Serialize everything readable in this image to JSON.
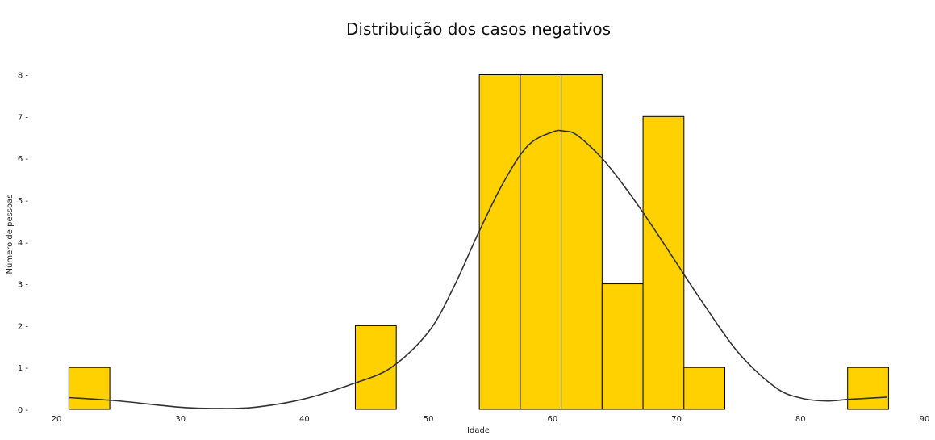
{
  "chart_data": {
    "type": "bar",
    "title": "Distribuição dos casos negativos",
    "xlabel": "Idade",
    "ylabel": "Número de pessoas",
    "xlim": [
      20,
      90
    ],
    "ylim": [
      0,
      8
    ],
    "xticks": [
      20,
      30,
      40,
      50,
      60,
      70,
      80,
      90
    ],
    "yticks": [
      0,
      1,
      2,
      3,
      4,
      5,
      6,
      7,
      8
    ],
    "grid": false,
    "bar_color": "#ffd100",
    "bar_edge_color": "#000000",
    "kde_color": "#333333",
    "bins": [
      {
        "start": 21.0,
        "end": 24.3,
        "count": 1
      },
      {
        "start": 44.1,
        "end": 47.4,
        "count": 2
      },
      {
        "start": 54.1,
        "end": 57.4,
        "count": 8
      },
      {
        "start": 57.4,
        "end": 60.7,
        "count": 8
      },
      {
        "start": 60.7,
        "end": 64.0,
        "count": 8
      },
      {
        "start": 64.0,
        "end": 67.3,
        "count": 3
      },
      {
        "start": 67.3,
        "end": 70.6,
        "count": 7
      },
      {
        "start": 70.6,
        "end": 73.9,
        "count": 1
      },
      {
        "start": 83.8,
        "end": 87.1,
        "count": 1
      }
    ],
    "kde": {
      "x": [
        21,
        25,
        30,
        33,
        36,
        40,
        44,
        47,
        50,
        52,
        54,
        56,
        58,
        60,
        61,
        62,
        64,
        66,
        68,
        70,
        72,
        75,
        78,
        80,
        82,
        84,
        87
      ],
      "y": [
        0.28,
        0.2,
        0.05,
        0.02,
        0.05,
        0.25,
        0.62,
        1.0,
        1.85,
        2.9,
        4.2,
        5.4,
        6.3,
        6.63,
        6.65,
        6.55,
        6.0,
        5.25,
        4.4,
        3.5,
        2.6,
        1.35,
        0.52,
        0.27,
        0.2,
        0.24,
        0.29
      ]
    }
  }
}
